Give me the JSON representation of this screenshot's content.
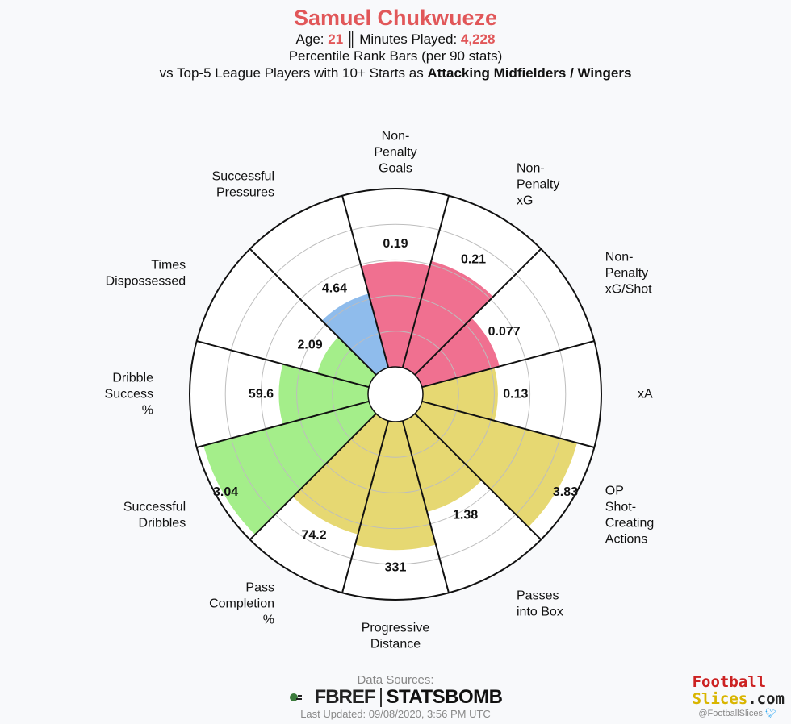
{
  "header": {
    "title": "Samuel Chukwueze",
    "age_label": "Age: ",
    "age": "21",
    "separator": "║",
    "minutes_label": "Minutes Played: ",
    "minutes": "4,228",
    "subtitle": "Percentile Rank Bars (per 90 stats)",
    "comparison_prefix": "vs Top-5 League Players with 10+ Starts as ",
    "comparison_group": "Attacking Midfielders / Wingers"
  },
  "chart_data": {
    "type": "radial bar (pizza)",
    "scale": "percentile rank",
    "rlim": [
      0,
      100
    ],
    "grid": true,
    "slices": [
      {
        "label": [
          "Non-",
          "Penalty",
          "Goals"
        ],
        "value_label": "0.19",
        "percentile": 59,
        "color": "#f07090"
      },
      {
        "label": [
          "Non-",
          "Penalty",
          "xG"
        ],
        "value_label": "0.21",
        "percentile": 62,
        "color": "#f07090"
      },
      {
        "label": [
          "Non-",
          "Penalty",
          "xG/Shot"
        ],
        "value_label": "0.077",
        "percentile": 45,
        "color": "#f07090"
      },
      {
        "label": [
          "xA"
        ],
        "value_label": "0.13",
        "percentile": 42,
        "color": "#e6d872"
      },
      {
        "label": [
          "OP",
          "Shot-",
          "Creating",
          "Actions"
        ],
        "value_label": "3.83",
        "percentile": 90,
        "color": "#e6d872"
      },
      {
        "label": [
          "Passes",
          "into Box"
        ],
        "value_label": "1.38",
        "percentile": 53,
        "color": "#e6d872"
      },
      {
        "label": [
          "Progressive",
          "Distance"
        ],
        "value_label": "331",
        "percentile": 72,
        "color": "#e6d872"
      },
      {
        "label": [
          "Pass",
          "Completion",
          "%"
        ],
        "value_label": "74.2",
        "percentile": 66,
        "color": "#e6d872"
      },
      {
        "label": [
          "Successful",
          "Dribbles"
        ],
        "value_label": "3.04",
        "percentile": 96,
        "color": "#a4ee8a"
      },
      {
        "label": [
          "Dribble",
          "Success",
          "%"
        ],
        "value_label": "59.6",
        "percentile": 50,
        "color": "#a4ee8a"
      },
      {
        "label": [
          "Times",
          "Dispossessed"
        ],
        "value_label": "2.09",
        "percentile": 30,
        "color": "#a4ee8a"
      },
      {
        "label": [
          "Successful",
          "Pressures"
        ],
        "value_label": "4.64",
        "percentile": 43,
        "color": "#8fbcec"
      }
    ]
  },
  "footer": {
    "sources_title": "Data Sources:",
    "fbref": "FBREF",
    "statsbomb": "STATSBOMB",
    "updated": "Last Updated: 09/08/2020, 3:56 PM UTC",
    "brand_line1": "Football",
    "brand_line2": "Slices",
    "brand_suffix": ".com",
    "handle": "@FootballSlices"
  }
}
